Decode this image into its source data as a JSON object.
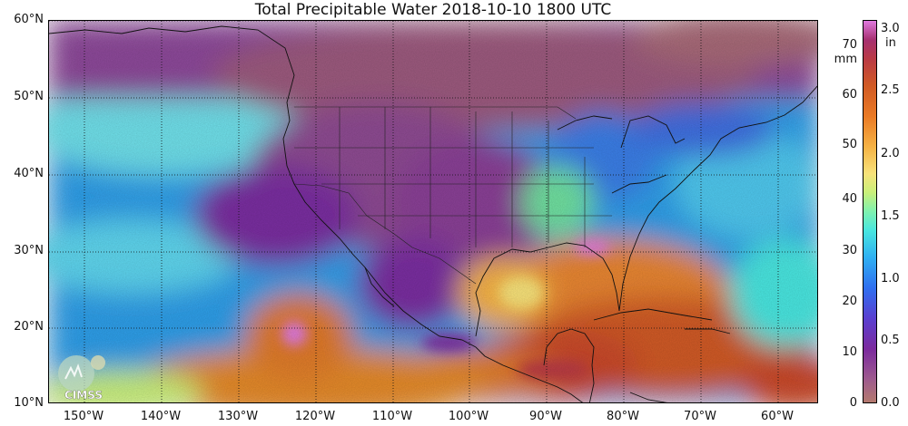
{
  "title": "Total Precipitable Water  2018-10-10 1800 UTC",
  "lat_labels": [
    "60°N",
    "50°N",
    "40°N",
    "30°N",
    "20°N",
    "10°N"
  ],
  "lon_labels": [
    "150°W",
    "140°W",
    "130°W",
    "120°W",
    "110°W",
    "100°W",
    "90°W",
    "80°W",
    "70°W",
    "60°W"
  ],
  "colorbar": {
    "mm_unit": "mm",
    "in_unit": "in",
    "mm_ticks": [
      "70",
      "60",
      "50",
      "40",
      "30",
      "20",
      "10",
      "0"
    ],
    "in_ticks": [
      "3.0",
      "2.5",
      "2.0",
      "1.5",
      "1.0",
      "0.5",
      "0.0"
    ]
  },
  "logo": {
    "text": "CIMSS"
  },
  "colors": {
    "dry": "#9c5a7e",
    "low": "#7b2a9e",
    "mid_low": "#2f8ef0",
    "mid": "#48e6e0",
    "mid_high": "#f6b244",
    "high": "#d05a25",
    "very_high": "#e07ae0"
  }
}
